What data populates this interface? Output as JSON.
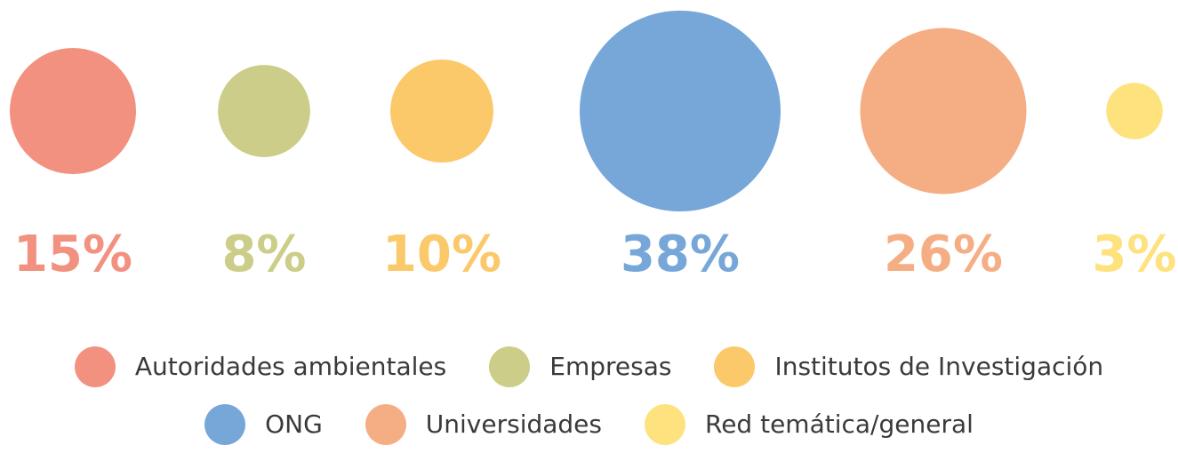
{
  "chart_data": {
    "type": "bubble",
    "categories": [
      "Autoridades ambientales",
      "Empresas",
      "Institutos de Investigación",
      "ONG",
      "Universidades",
      "Red temática/general"
    ],
    "values": [
      15,
      8,
      10,
      38,
      26,
      3
    ],
    "value_labels": [
      "15%",
      "8%",
      "10%",
      "38%",
      "26%",
      "3%"
    ],
    "colors": [
      "#f29180",
      "#cbcd88",
      "#fbc96a",
      "#76a7d8",
      "#f5ae84",
      "#fde27d"
    ]
  }
}
